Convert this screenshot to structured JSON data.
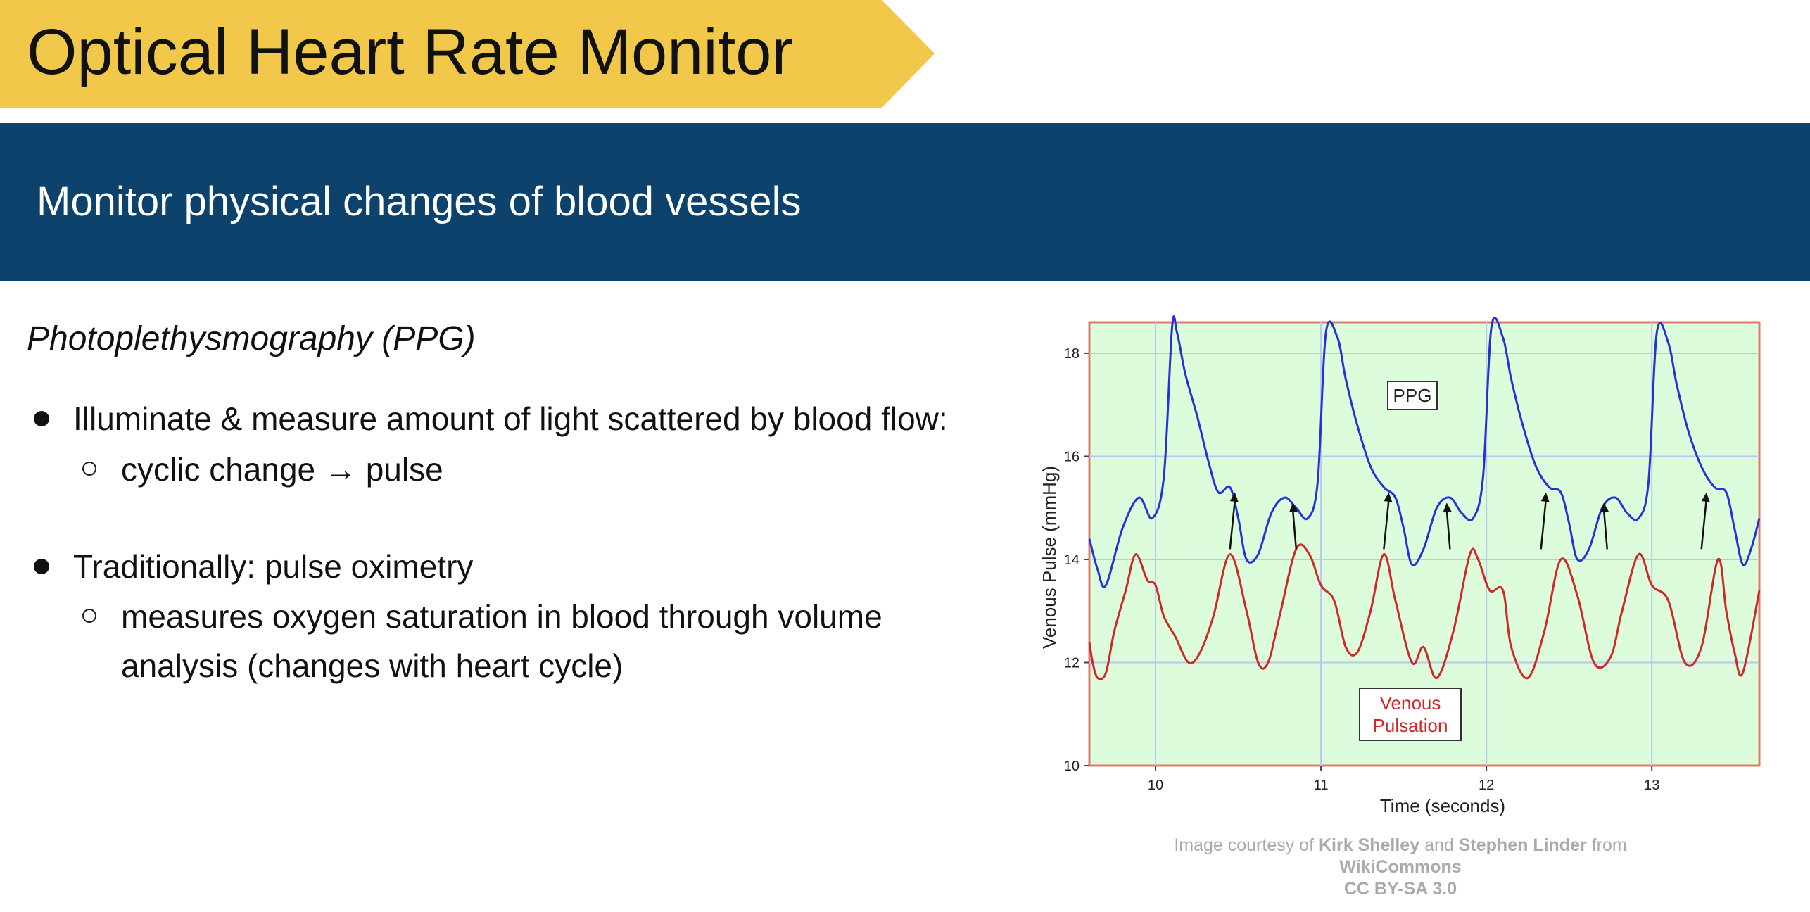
{
  "slide": {
    "title": "Optical Heart Rate Monitor",
    "header": "Monitor physical changes of blood vessels",
    "section_heading": "Photoplethysmography (PPG)",
    "bullets": [
      {
        "text": "Illuminate & measure amount of light scattered by blood flow:",
        "sub": [
          "cyclic change → pulse"
        ]
      },
      {
        "text": "Traditionally: pulse oximetry",
        "sub": [
          "measures oxygen saturation in blood through volume",
          "analysis (changes with heart cycle)"
        ]
      }
    ],
    "credit": {
      "prefix": "Image courtesy of",
      "author1": "Kirk Shelley",
      "and": "and",
      "author2": "Stephen Linder",
      "from": "from",
      "source": "WikiCommons",
      "license": "CC BY-SA 3.0"
    }
  },
  "colors": {
    "title_banner": "#f2c84b",
    "header_band": "#0c426c",
    "plot_background": "#dcfcdc",
    "plot_border": "#e07a6a",
    "ppg_line": "#2433d8",
    "venous_line": "#d02828",
    "grid": "#b8c8f0"
  },
  "chart_data": {
    "type": "line",
    "xlabel": "Time (seconds)",
    "ylabel": "Venous Pulse (mmHg)",
    "xlim": [
      9.6,
      13.65
    ],
    "ylim": [
      10,
      18.6
    ],
    "xticks": [
      10,
      11,
      12,
      13
    ],
    "yticks": [
      10,
      12,
      14,
      16,
      18
    ],
    "grid": true,
    "series": [
      {
        "name": "PPG",
        "x": [
          9.6,
          9.65,
          9.7,
          9.8,
          9.9,
          9.98,
          10.05,
          10.1,
          10.13,
          10.18,
          10.25,
          10.32,
          10.38,
          10.45,
          10.5,
          10.55,
          10.62,
          10.7,
          10.78,
          10.85,
          10.92,
          10.98,
          11.03,
          11.1,
          11.15,
          11.22,
          11.3,
          11.38,
          11.45,
          11.5,
          11.55,
          11.62,
          11.7,
          11.78,
          11.85,
          11.92,
          11.98,
          12.03,
          12.1,
          12.15,
          12.22,
          12.3,
          12.38,
          12.45,
          12.5,
          12.55,
          12.62,
          12.7,
          12.78,
          12.85,
          12.92,
          12.98,
          13.03,
          13.1,
          13.15,
          13.22,
          13.3,
          13.38,
          13.45,
          13.5,
          13.55,
          13.6,
          13.65
        ],
        "values": [
          14.4,
          13.8,
          13.5,
          14.6,
          15.2,
          14.8,
          15.6,
          18.5,
          18.4,
          17.6,
          16.8,
          15.9,
          15.3,
          15.4,
          14.8,
          14.0,
          14.1,
          14.9,
          15.2,
          15.0,
          14.8,
          15.5,
          18.4,
          18.3,
          17.5,
          16.6,
          15.8,
          15.4,
          15.2,
          14.6,
          13.9,
          14.2,
          15.0,
          15.2,
          14.9,
          14.8,
          15.6,
          18.5,
          18.3,
          17.5,
          16.6,
          15.8,
          15.4,
          15.3,
          14.7,
          14.0,
          14.2,
          15.0,
          15.2,
          14.9,
          14.8,
          15.5,
          18.4,
          18.2,
          17.4,
          16.5,
          15.8,
          15.4,
          15.3,
          14.6,
          13.9,
          14.2,
          14.8
        ]
      },
      {
        "name": "Venous Pulsation",
        "x": [
          9.6,
          9.62,
          9.65,
          9.7,
          9.75,
          9.82,
          9.88,
          9.95,
          10.0,
          10.05,
          10.12,
          10.2,
          10.27,
          10.35,
          10.45,
          10.55,
          10.62,
          10.68,
          10.75,
          10.85,
          10.93,
          11.0,
          11.08,
          11.15,
          11.22,
          11.3,
          11.38,
          11.45,
          11.55,
          11.62,
          11.7,
          11.8,
          11.9,
          11.95,
          12.02,
          12.1,
          12.15,
          12.25,
          12.35,
          12.45,
          12.55,
          12.65,
          12.75,
          12.82,
          12.92,
          13.0,
          13.1,
          13.2,
          13.3,
          13.4,
          13.45,
          13.5,
          13.55,
          13.65
        ],
        "values": [
          12.4,
          12.0,
          11.7,
          11.8,
          12.6,
          13.4,
          14.1,
          13.6,
          13.5,
          12.9,
          12.5,
          12.0,
          12.2,
          12.9,
          14.1,
          13.0,
          12.0,
          12.0,
          12.9,
          14.2,
          14.1,
          13.5,
          13.2,
          12.3,
          12.2,
          13.0,
          14.1,
          13.2,
          12.0,
          12.3,
          11.7,
          12.6,
          14.1,
          14.0,
          13.4,
          13.4,
          12.3,
          11.7,
          12.6,
          14.0,
          13.3,
          12.0,
          12.1,
          13.0,
          14.1,
          13.5,
          13.2,
          12.0,
          12.3,
          14.0,
          13.0,
          12.2,
          11.8,
          13.4
        ]
      }
    ],
    "annotations": [
      "PPG",
      "Venous",
      "Pulsation"
    ],
    "arrows": [
      {
        "from": [
          10.45,
          14.2
        ],
        "to": [
          10.48,
          15.3
        ]
      },
      {
        "from": [
          10.85,
          14.2
        ],
        "to": [
          10.83,
          15.1
        ]
      },
      {
        "from": [
          11.38,
          14.2
        ],
        "to": [
          11.41,
          15.3
        ]
      },
      {
        "from": [
          11.78,
          14.2
        ],
        "to": [
          11.76,
          15.1
        ]
      },
      {
        "from": [
          12.33,
          14.2
        ],
        "to": [
          12.36,
          15.3
        ]
      },
      {
        "from": [
          12.73,
          14.2
        ],
        "to": [
          12.71,
          15.1
        ]
      },
      {
        "from": [
          13.3,
          14.2
        ],
        "to": [
          13.33,
          15.3
        ]
      }
    ]
  }
}
